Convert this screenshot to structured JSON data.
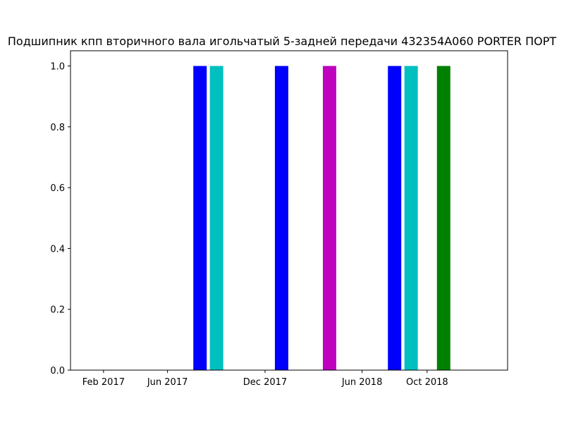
{
  "chart_data": {
    "type": "bar",
    "title": "Подшипник кпп вторичного вала игольчатый 5-задней передачи 432354A060 PORTER ПОРТ",
    "xlabel": "",
    "ylabel": "",
    "x_axis": {
      "type": "date",
      "range": [
        "2016-12-01",
        "2019-03-01"
      ],
      "tick_dates": [
        "2017-02-01",
        "2017-06-01",
        "2017-12-01",
        "2018-06-01",
        "2018-10-01"
      ],
      "tick_labels": [
        "Feb 2017",
        "Jun 2017",
        "Dec 2017",
        "Jun 2018",
        "Oct 2018"
      ]
    },
    "y_axis": {
      "range": [
        0,
        1.05
      ],
      "ticks": [
        0.0,
        0.2,
        0.4,
        0.6,
        0.8,
        1.0
      ],
      "tick_labels": [
        "0.0",
        "0.2",
        "0.4",
        "0.6",
        "0.8",
        "1.0"
      ]
    },
    "grid": false,
    "bars": [
      {
        "date": "2017-08-01",
        "value": 1,
        "color": "#0000ff"
      },
      {
        "date": "2017-09-01",
        "value": 1,
        "color": "#00bfbf"
      },
      {
        "date": "2018-01-01",
        "value": 1,
        "color": "#0000ff"
      },
      {
        "date": "2018-04-01",
        "value": 1,
        "color": "#bf00bf"
      },
      {
        "date": "2018-08-01",
        "value": 1,
        "color": "#0000ff"
      },
      {
        "date": "2018-09-01",
        "value": 1,
        "color": "#00bfbf"
      },
      {
        "date": "2018-11-01",
        "value": 1,
        "color": "#008000"
      }
    ]
  }
}
